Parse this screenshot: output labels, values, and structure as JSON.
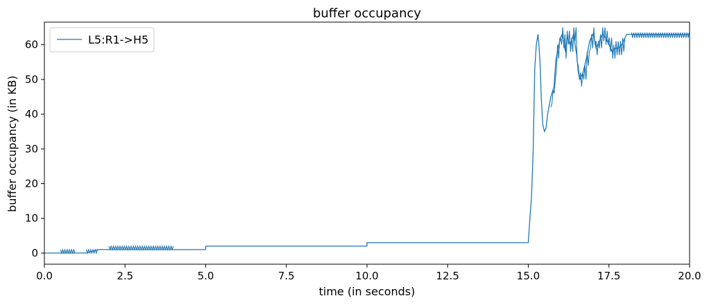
{
  "chart_data": {
    "type": "line",
    "title": "buffer occupancy",
    "xlabel": "time (in seconds)",
    "ylabel": "buffer occupancy (in KB)",
    "xlim": [
      0,
      20
    ],
    "ylim": [
      -3.2,
      66.5
    ],
    "x_ticks": [
      0,
      2.5,
      5,
      7.5,
      10,
      12.5,
      15,
      17.5,
      20
    ],
    "x_tick_labels": [
      "0.0",
      "2.5",
      "5.0",
      "7.5",
      "10.0",
      "12.5",
      "15.0",
      "17.5",
      "20.0"
    ],
    "y_ticks": [
      0,
      10,
      20,
      30,
      40,
      50,
      60
    ],
    "y_tick_labels": [
      "0",
      "10",
      "20",
      "30",
      "40",
      "50",
      "60"
    ],
    "grid": false,
    "legend_position": "top-left",
    "series": [
      {
        "name": "L5:R1->H5",
        "color": "#1f77b4",
        "x": [
          0,
          0.02,
          0.02,
          0.5,
          0.5,
          1.05,
          1.05,
          1.3,
          1.3,
          1.65,
          1.65,
          1.99,
          1.99,
          5.0,
          5.0,
          10.0,
          10.0,
          15.0,
          15.0,
          15.05,
          15.05,
          15.1,
          15.1,
          15.15,
          15.15,
          15.2,
          15.2,
          15.25,
          15.25,
          15.3,
          15.3,
          15.33,
          15.33,
          15.37,
          15.37,
          15.4,
          15.4,
          15.45,
          15.5,
          15.55,
          15.6,
          15.7,
          15.8,
          15.85,
          15.9,
          15.95,
          16.0,
          16.05,
          16.1,
          16.15,
          16.2,
          16.3,
          16.4,
          16.5,
          16.55,
          16.6,
          16.7,
          16.8,
          16.9,
          17.0,
          17.05,
          17.1,
          17.2,
          17.3,
          17.4,
          17.5,
          17.6,
          17.7,
          17.8,
          17.9,
          18.0,
          18.05,
          18.1,
          18.2,
          20.0
        ],
        "y": [
          0,
          0,
          0,
          0,
          0,
          0,
          0,
          0,
          0,
          1,
          1,
          1,
          1,
          1,
          2,
          2,
          3,
          3,
          3,
          10,
          10,
          16,
          16,
          29,
          29,
          53,
          53,
          60,
          60,
          63,
          63,
          60,
          60,
          54,
          54,
          45,
          45,
          37,
          35,
          36,
          40,
          45,
          48,
          55,
          58,
          60,
          62,
          63,
          61,
          58,
          62,
          60,
          63,
          57,
          52,
          50,
          52,
          56,
          61,
          63,
          62,
          59,
          61,
          63,
          62,
          60,
          58,
          59,
          59,
          60,
          62,
          63,
          63,
          63,
          63
        ],
        "noise_bands": [
          {
            "x": [
              0.5,
              0.95
            ],
            "low": 0,
            "high": 1
          },
          {
            "x": [
              1.3,
              1.65
            ],
            "low": 0,
            "high": 1
          },
          {
            "x": [
              2.0,
              4.0
            ],
            "low": 1,
            "high": 2
          },
          {
            "x": [
              15.7,
              16.0
            ],
            "low": -2,
            "high": 2
          },
          {
            "x": [
              16.0,
              18.0
            ],
            "low": -2,
            "high": 2
          },
          {
            "x": [
              18.2,
              20.0
            ],
            "low": 62,
            "high": 63.5
          }
        ]
      }
    ]
  }
}
